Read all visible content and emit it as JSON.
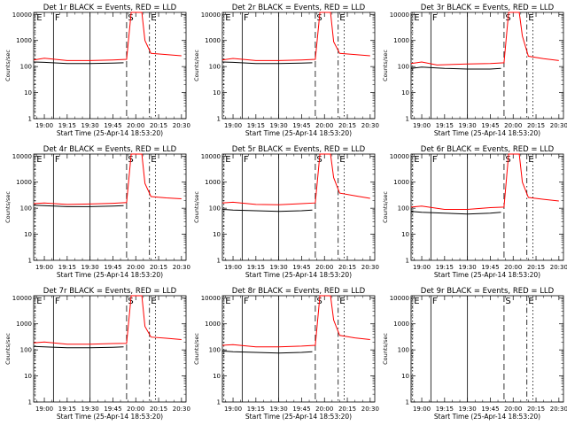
{
  "colors": {
    "events": "#000000",
    "lld": "#ff0000",
    "background": "#ffffff"
  },
  "shared": {
    "xlabel": "Start Time (25-Apr-14 18:53:20)",
    "ylabel": "Counts/sec",
    "x_tick_labels": [
      "19:00",
      "19:15",
      "19:30",
      "19:45",
      "20:00",
      "20:15",
      "20:30"
    ],
    "y_tick_labels": [
      "1",
      "10",
      "100",
      "1000",
      "10000"
    ],
    "markers": [
      {
        "label": "E",
        "time": "18:54",
        "style": "dotted"
      },
      {
        "label": "F",
        "time": "19:06",
        "style": "solid"
      },
      {
        "label": "",
        "time": "19:30",
        "style": "solid"
      },
      {
        "label": "S",
        "time": "19:54",
        "style": "dashed"
      },
      {
        "label": "E",
        "time": "20:09",
        "style": "dash-dot"
      },
      {
        "label": "",
        "time": "20:13",
        "style": "dotted"
      }
    ]
  },
  "chart_data": [
    {
      "type": "line",
      "title": "Det 1r BLACK = Events, RED = LLD",
      "xlim": [
        "18:53",
        "20:33"
      ],
      "ylim": [
        1,
        12000
      ],
      "y_scale": "log",
      "markers_shown": [
        "E",
        "F",
        "",
        "S",
        "E",
        ""
      ],
      "series": [
        {
          "name": "BLACK = Events",
          "x": [
            "18:53",
            "19:00",
            "19:15",
            "19:30",
            "19:45",
            "19:52"
          ],
          "y": [
            150,
            145,
            130,
            130,
            135,
            140
          ]
        },
        {
          "name": "RED = LLD",
          "x": [
            "18:53",
            "19:00",
            "19:15",
            "19:30",
            "19:45",
            "19:54",
            "19:57",
            "20:00",
            "20:04",
            "20:06",
            "20:10",
            "20:20",
            "20:30"
          ],
          "y": [
            180,
            210,
            170,
            170,
            180,
            190,
            12000,
            12000,
            12000,
            1000,
            320,
            290,
            260
          ]
        }
      ]
    },
    {
      "type": "line",
      "title": "Det 2r BLACK = Events, RED = LLD",
      "xlim": [
        "18:53",
        "20:33"
      ],
      "ylim": [
        1,
        12000
      ],
      "y_scale": "log",
      "markers_shown": [
        "E",
        "F",
        "",
        "S",
        "E",
        ""
      ],
      "series": [
        {
          "name": "BLACK = Events",
          "x": [
            "18:53",
            "19:00",
            "19:15",
            "19:30",
            "19:45",
            "19:52"
          ],
          "y": [
            150,
            145,
            130,
            130,
            135,
            140
          ]
        },
        {
          "name": "RED = LLD",
          "x": [
            "18:53",
            "19:00",
            "19:15",
            "19:30",
            "19:45",
            "19:54",
            "19:57",
            "20:00",
            "20:04",
            "20:06",
            "20:10",
            "20:20",
            "20:30"
          ],
          "y": [
            180,
            205,
            170,
            170,
            180,
            190,
            12000,
            12000,
            12000,
            900,
            320,
            290,
            260
          ]
        }
      ]
    },
    {
      "type": "line",
      "title": "Det 3r BLACK = Events, RED = LLD",
      "xlim": [
        "18:53",
        "20:33"
      ],
      "ylim": [
        1,
        12000
      ],
      "y_scale": "log",
      "markers_shown": [
        "E",
        "F",
        "",
        "S",
        "E",
        ""
      ],
      "series": [
        {
          "name": "BLACK = Events",
          "x": [
            "18:53",
            "19:00",
            "19:15",
            "19:30",
            "19:45",
            "19:52"
          ],
          "y": [
            85,
            95,
            85,
            80,
            80,
            85
          ]
        },
        {
          "name": "RED = LLD",
          "x": [
            "18:53",
            "19:00",
            "19:10",
            "19:30",
            "19:45",
            "19:54",
            "19:57",
            "20:00",
            "20:04",
            "20:06",
            "20:10",
            "20:20",
            "20:30"
          ],
          "y": [
            130,
            150,
            115,
            125,
            130,
            140,
            12000,
            12000,
            12000,
            1500,
            250,
            200,
            170
          ]
        }
      ]
    },
    {
      "type": "line",
      "title": "Det 4r BLACK = Events, RED = LLD",
      "xlim": [
        "18:53",
        "20:33"
      ],
      "ylim": [
        1,
        12000
      ],
      "y_scale": "log",
      "markers_shown": [
        "E",
        "F",
        "",
        "S",
        "E",
        ""
      ],
      "series": [
        {
          "name": "BLACK = Events",
          "x": [
            "18:53",
            "19:00",
            "19:15",
            "19:30",
            "19:45",
            "19:52"
          ],
          "y": [
            130,
            125,
            115,
            115,
            120,
            125
          ]
        },
        {
          "name": "RED = LLD",
          "x": [
            "18:53",
            "19:00",
            "19:15",
            "19:30",
            "19:45",
            "19:54",
            "19:57",
            "20:00",
            "20:04",
            "20:06",
            "20:10",
            "20:20",
            "20:30"
          ],
          "y": [
            150,
            160,
            140,
            145,
            155,
            165,
            12000,
            12000,
            12000,
            900,
            280,
            250,
            230
          ]
        }
      ]
    },
    {
      "type": "line",
      "title": "Det 5r BLACK = Events, RED = LLD",
      "xlim": [
        "18:53",
        "20:33"
      ],
      "ylim": [
        1,
        12000
      ],
      "y_scale": "log",
      "markers_shown": [
        "E",
        "F",
        "",
        "S",
        "E",
        ""
      ],
      "series": [
        {
          "name": "BLACK = Events",
          "x": [
            "18:53",
            "19:00",
            "19:15",
            "19:30",
            "19:45",
            "19:52"
          ],
          "y": [
            90,
            85,
            80,
            75,
            80,
            85
          ]
        },
        {
          "name": "RED = LLD",
          "x": [
            "18:53",
            "19:00",
            "19:15",
            "19:30",
            "19:45",
            "19:54",
            "19:57",
            "20:00",
            "20:04",
            "20:06",
            "20:10",
            "20:20",
            "20:30"
          ],
          "y": [
            160,
            170,
            140,
            135,
            150,
            160,
            12000,
            12000,
            12000,
            1500,
            380,
            300,
            240
          ]
        }
      ]
    },
    {
      "type": "line",
      "title": "Det 6r BLACK = Events, RED = LLD",
      "xlim": [
        "18:53",
        "20:33"
      ],
      "ylim": [
        1,
        12000
      ],
      "y_scale": "log",
      "markers_shown": [
        "E",
        "F",
        "",
        "S",
        "E",
        ""
      ],
      "series": [
        {
          "name": "BLACK = Events",
          "x": [
            "18:53",
            "19:00",
            "19:15",
            "19:30",
            "19:45",
            "19:52"
          ],
          "y": [
            75,
            70,
            65,
            60,
            65,
            70
          ]
        },
        {
          "name": "RED = LLD",
          "x": [
            "18:53",
            "19:00",
            "19:15",
            "19:30",
            "19:45",
            "19:54",
            "19:57",
            "20:00",
            "20:04",
            "20:06",
            "20:10",
            "20:20",
            "20:30"
          ],
          "y": [
            110,
            120,
            90,
            90,
            105,
            110,
            12000,
            12000,
            12000,
            1000,
            260,
            220,
            190
          ]
        }
      ]
    },
    {
      "type": "line",
      "title": "Det 7r BLACK = Events, RED = LLD",
      "xlim": [
        "18:53",
        "20:33"
      ],
      "ylim": [
        1,
        12000
      ],
      "y_scale": "log",
      "markers_shown": [
        "E",
        "F",
        "",
        "S",
        "E",
        ""
      ],
      "series": [
        {
          "name": "BLACK = Events",
          "x": [
            "18:53",
            "19:00",
            "19:15",
            "19:30",
            "19:45",
            "19:52"
          ],
          "y": [
            135,
            130,
            120,
            120,
            125,
            130
          ]
        },
        {
          "name": "RED = LLD",
          "x": [
            "18:53",
            "19:00",
            "19:15",
            "19:30",
            "19:45",
            "19:54",
            "19:57",
            "20:00",
            "20:04",
            "20:06",
            "20:10",
            "20:20",
            "20:30"
          ],
          "y": [
            185,
            200,
            165,
            165,
            175,
            180,
            12000,
            12000,
            12000,
            800,
            310,
            280,
            250
          ]
        }
      ]
    },
    {
      "type": "line",
      "title": "Det 8r BLACK = Events, RED = LLD",
      "xlim": [
        "18:53",
        "20:33"
      ],
      "ylim": [
        1,
        12000
      ],
      "y_scale": "log",
      "markers_shown": [
        "E",
        "F",
        "",
        "S",
        "E",
        ""
      ],
      "series": [
        {
          "name": "BLACK = Events",
          "x": [
            "18:53",
            "19:00",
            "19:15",
            "19:30",
            "19:45",
            "19:52"
          ],
          "y": [
            90,
            85,
            80,
            75,
            80,
            85
          ]
        },
        {
          "name": "RED = LLD",
          "x": [
            "18:53",
            "19:00",
            "19:15",
            "19:30",
            "19:45",
            "19:54",
            "19:57",
            "20:00",
            "20:04",
            "20:06",
            "20:10",
            "20:20",
            "20:30"
          ],
          "y": [
            150,
            160,
            130,
            130,
            140,
            150,
            12000,
            12000,
            12000,
            1400,
            360,
            290,
            250
          ]
        }
      ]
    },
    {
      "type": "line",
      "title": "Det 9r BLACK = Events, RED = LLD",
      "xlim": [
        "18:53",
        "20:33"
      ],
      "ylim": [
        1,
        12000
      ],
      "y_scale": "log",
      "markers_shown": [
        "E",
        "F",
        "",
        "S",
        "E",
        ""
      ],
      "series": []
    }
  ]
}
